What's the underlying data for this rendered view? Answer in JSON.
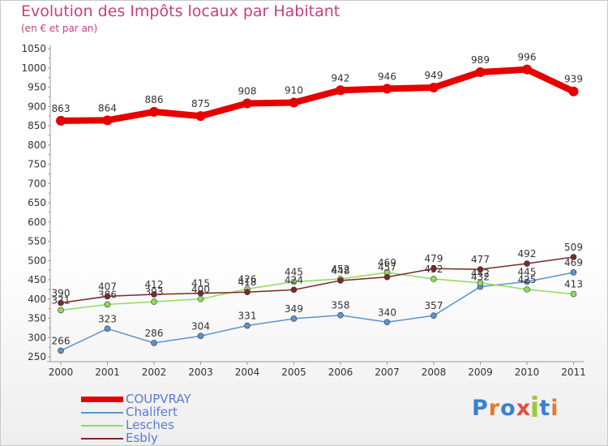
{
  "header": {
    "title": "Evolution des Impôts locaux par Habitant",
    "subtitle": "(en € et par an)"
  },
  "logo": {
    "text": "Proxiti",
    "letter_colors": [
      "#3a7fd1",
      "#e47a2b",
      "#3a7fd1",
      "#e0503a",
      "#9bc93a",
      "#3a7fd1",
      "#e47a2b"
    ]
  },
  "chart_data": {
    "type": "line",
    "x": [
      "2000",
      "2001",
      "2002",
      "2003",
      "2004",
      "2005",
      "2006",
      "2007",
      "2008",
      "2009",
      "2010",
      "2011"
    ],
    "ylim": [
      250,
      1050
    ],
    "yticks": [
      250,
      300,
      350,
      400,
      450,
      500,
      550,
      600,
      650,
      700,
      750,
      800,
      850,
      900,
      950,
      1000,
      1050
    ],
    "grid": false,
    "legend_position": "bottom-left",
    "series": [
      {
        "name": "COUPVRAY",
        "color": "#e60000",
        "values": [
          863,
          864,
          886,
          875,
          908,
          910,
          942,
          946,
          949,
          989,
          996,
          939
        ]
      },
      {
        "name": "Chalifert",
        "color": "#5b93cf",
        "values": [
          266,
          323,
          286,
          304,
          331,
          349,
          358,
          340,
          357,
          432,
          445,
          469
        ]
      },
      {
        "name": "Lesches",
        "color": "#8fdc5a",
        "values": [
          371,
          386,
          393,
          400,
          426,
          445,
          452,
          469,
          452,
          442,
          425,
          413
        ]
      },
      {
        "name": "Esbly",
        "color": "#7a2a2a",
        "values": [
          390,
          407,
          412,
          415,
          418,
          424,
          448,
          457,
          479,
          477,
          492,
          509
        ]
      }
    ]
  }
}
